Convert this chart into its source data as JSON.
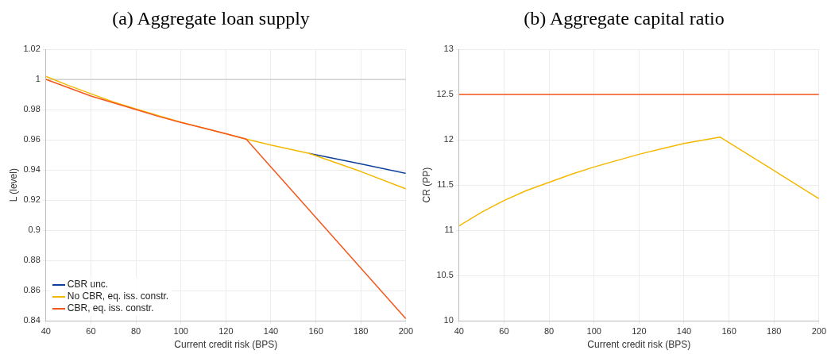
{
  "chart_data": [
    {
      "type": "line",
      "title": "(a) Aggregate loan supply",
      "xlabel": "Current credit risk (BPS)",
      "ylabel": "L (level)",
      "xlim": [
        40,
        200
      ],
      "xticks": [
        40,
        60,
        80,
        100,
        120,
        140,
        160,
        180,
        200
      ],
      "ylim": [
        0.84,
        1.02
      ],
      "yticks": [
        0.84,
        0.86,
        0.88,
        0.9,
        0.92,
        0.94,
        0.96,
        0.98,
        1,
        1.02
      ],
      "grid": true,
      "legend": "bottom left",
      "marker": "none",
      "line_style": "solid",
      "ref_lines": [
        {
          "axis": "y",
          "value": 1,
          "color": "#c0c0c0"
        }
      ],
      "series": [
        {
          "name": "CBR unc.",
          "color": "#0c3f9a",
          "x": [
            157,
            180,
            200
          ],
          "values": [
            0.951,
            0.944,
            0.9378
          ]
        },
        {
          "name": "No CBR, eq. iss. constr.",
          "color": "#f5b800",
          "x": [
            40,
            50,
            60,
            70,
            80,
            90,
            100,
            110,
            120,
            129,
            140,
            157,
            180,
            200
          ],
          "values": [
            1.002,
            0.996,
            0.9905,
            0.985,
            0.9805,
            0.976,
            0.9717,
            0.9678,
            0.964,
            0.9605,
            0.9565,
            0.951,
            0.939,
            0.9275
          ]
        },
        {
          "name": "CBR, eq. iss. constr.",
          "color": "#f5561c",
          "x": [
            40,
            50,
            60,
            70,
            80,
            90,
            100,
            110,
            120,
            129,
            200
          ],
          "values": [
            1.0,
            0.9945,
            0.989,
            0.9845,
            0.98,
            0.9755,
            0.9715,
            0.9678,
            0.964,
            0.9605,
            0.8415
          ]
        }
      ]
    },
    {
      "type": "line",
      "title": "(b) Aggregate capital ratio",
      "xlabel": "Current credit risk (BPS)",
      "ylabel": "CR (PP)",
      "xlim": [
        40,
        200
      ],
      "xticks": [
        40,
        60,
        80,
        100,
        120,
        140,
        160,
        180,
        200
      ],
      "ylim": [
        10,
        13
      ],
      "yticks": [
        10,
        10.5,
        11,
        11.5,
        12,
        12.5,
        13
      ],
      "grid": true,
      "marker": "none",
      "line_style": "solid",
      "series": [
        {
          "color": "#f5561c",
          "x": [
            40,
            200
          ],
          "values": [
            12.5,
            12.5
          ]
        },
        {
          "color": "#f5b800",
          "x": [
            40,
            50,
            60,
            70,
            80,
            90,
            100,
            110,
            120,
            130,
            140,
            156,
            180,
            200
          ],
          "values": [
            11.05,
            11.2,
            11.33,
            11.44,
            11.53,
            11.62,
            11.7,
            11.77,
            11.84,
            11.9,
            11.96,
            12.03,
            11.66,
            11.35
          ]
        }
      ]
    }
  ]
}
